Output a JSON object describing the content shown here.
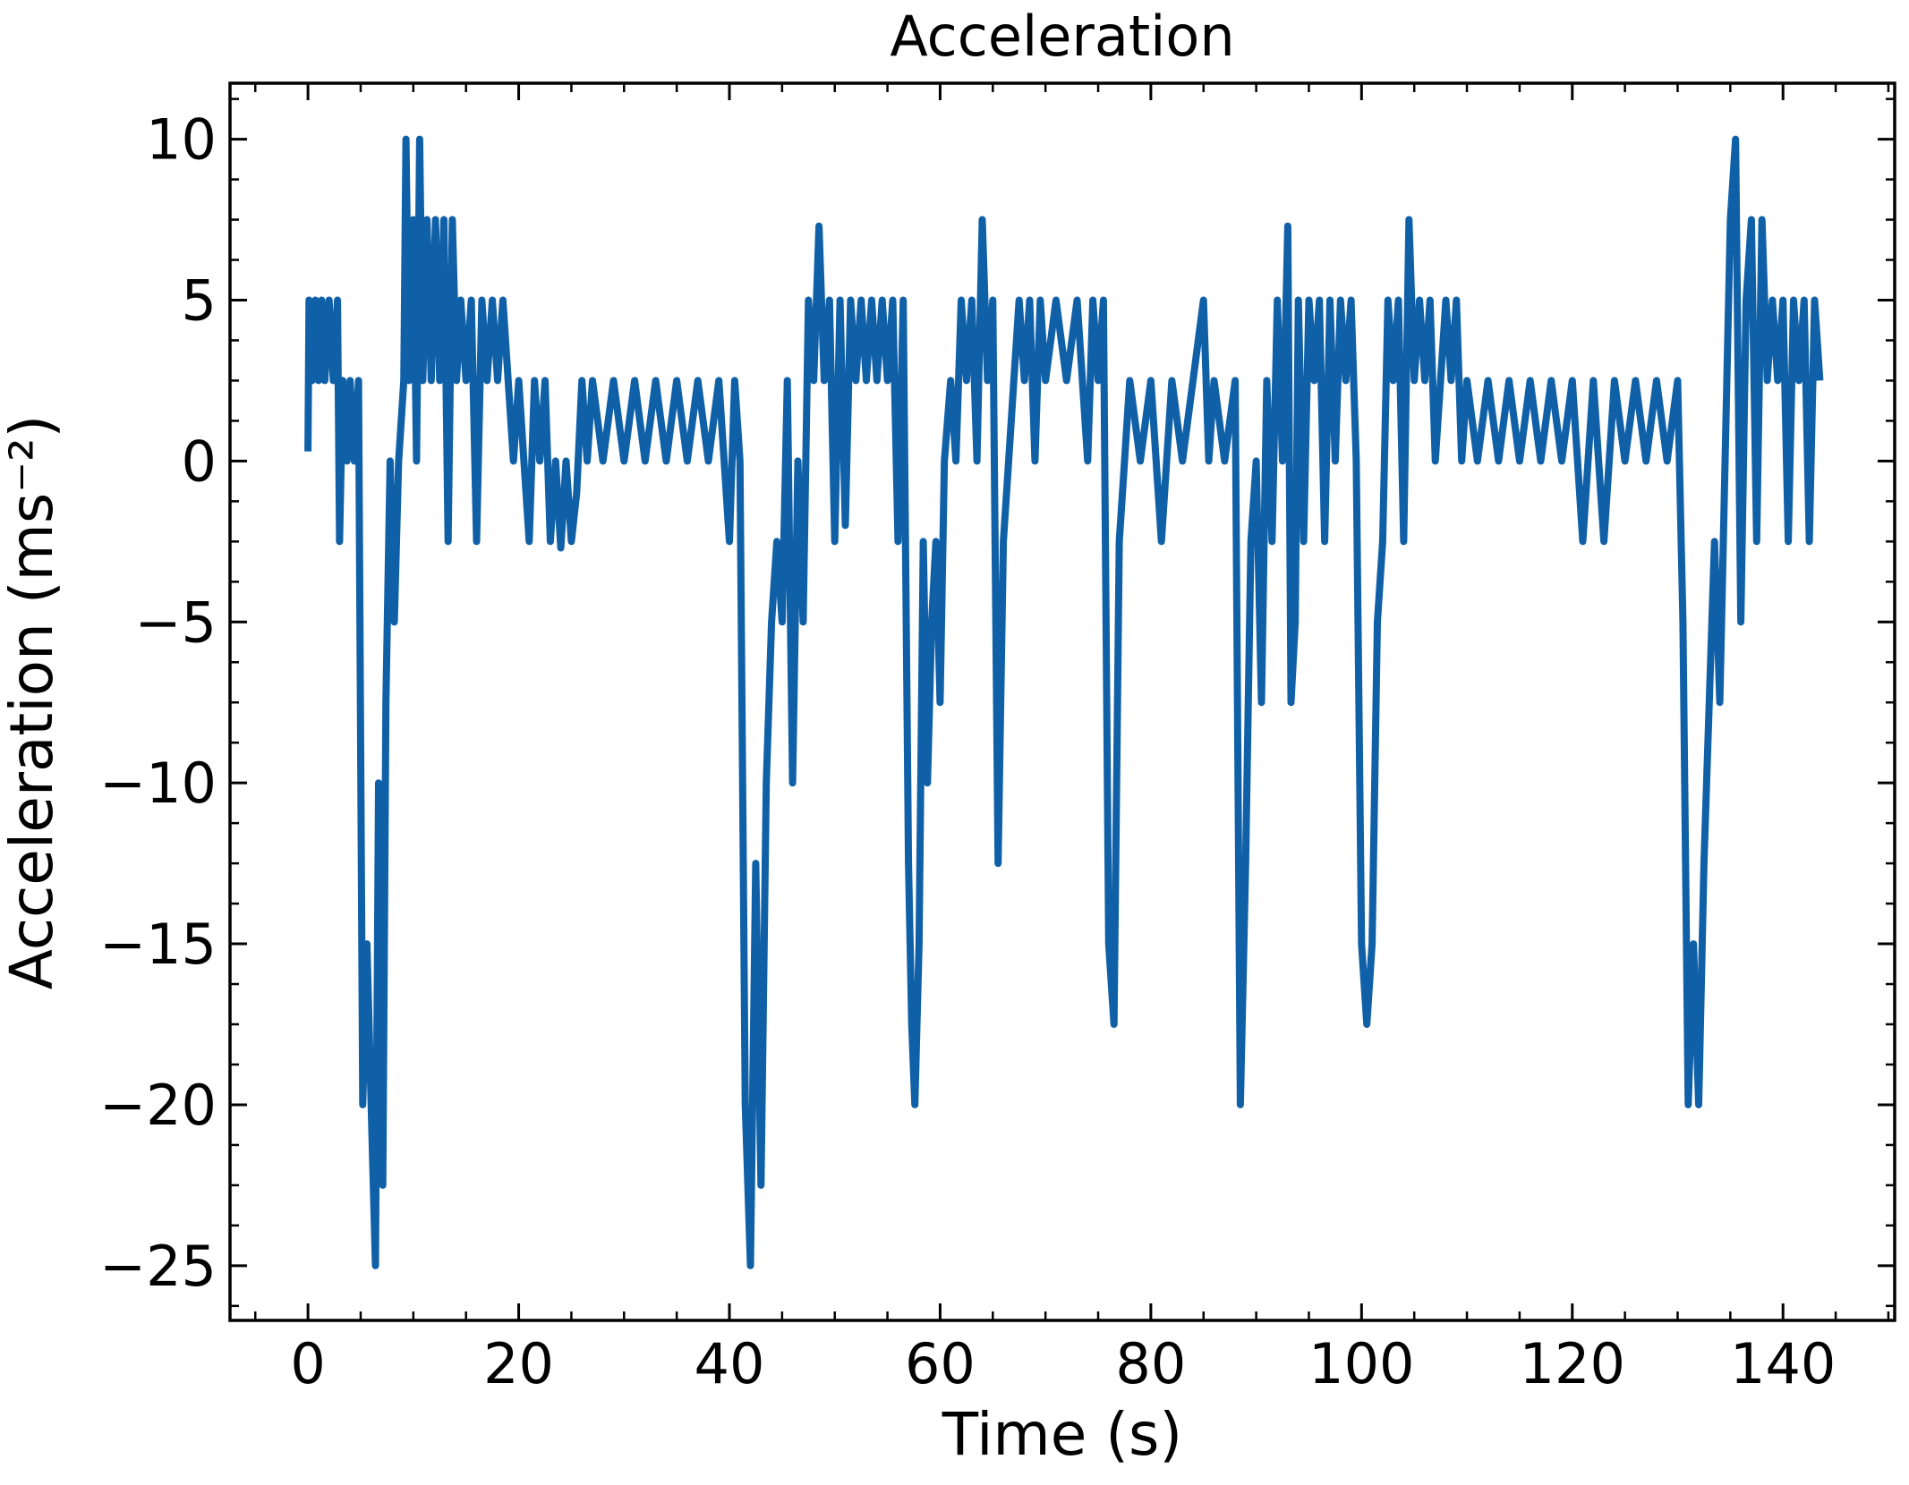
{
  "chart_data": {
    "type": "line",
    "title": "Acceleration",
    "x_label": "Time (s)",
    "y_label": "Acceleration (ms⁻²)",
    "color": "#1060a8",
    "x": [
      0,
      0.1,
      0.4,
      0.7,
      1,
      1.3,
      1.6,
      2,
      2.4,
      2.8,
      3,
      3.3,
      3.7,
      4,
      4.4,
      4.8,
      5.2,
      5.6,
      6,
      6.4,
      6.7,
      7.1,
      7.4,
      7.8,
      8.2,
      8.6,
      9.1,
      9.3,
      9.6,
      10,
      10.3,
      10.6,
      10.9,
      11.3,
      11.7,
      12.1,
      12.5,
      12.9,
      13.3,
      13.7,
      14.1,
      14.5,
      15,
      15.5,
      16,
      16.5,
      17,
      17.5,
      18,
      18.5,
      19,
      19.5,
      20,
      20.5,
      21,
      21.5,
      22,
      22.5,
      23,
      23.5,
      24,
      24.5,
      25,
      25.5,
      26,
      26.5,
      27,
      28,
      29,
      30,
      31,
      32,
      33,
      34,
      35,
      36,
      37,
      38,
      39,
      40,
      40.5,
      41,
      41.5,
      42,
      42.5,
      43,
      43.5,
      44,
      44.5,
      45,
      45.5,
      46,
      46.5,
      47,
      47.5,
      48,
      48.5,
      49,
      49.5,
      50,
      50.5,
      51,
      51.5,
      52,
      52.5,
      53,
      53.5,
      54,
      54.5,
      55,
      55.5,
      56,
      56.5,
      57,
      57.3,
      57.6,
      58,
      58.4,
      58.8,
      59.2,
      59.6,
      60,
      60.4,
      61,
      61.5,
      62,
      62.5,
      63,
      63.5,
      64,
      64.5,
      65,
      65.5,
      66,
      66.5,
      67,
      67.5,
      68,
      68.5,
      69,
      69.5,
      70,
      71,
      72,
      73,
      74,
      74.5,
      75,
      75.5,
      76,
      76.5,
      77,
      77.5,
      78,
      79,
      80,
      81,
      82,
      83,
      84,
      85,
      85.5,
      86,
      87,
      88,
      88.5,
      89,
      89.5,
      90,
      90.5,
      91,
      91.5,
      92,
      92.5,
      93,
      93.3,
      93.7,
      94,
      94.5,
      95,
      95.5,
      96,
      96.5,
      97,
      97.5,
      98,
      98.5,
      99,
      99.5,
      100,
      100.5,
      101,
      101.5,
      102,
      102.5,
      103,
      103.5,
      104,
      104.5,
      105,
      105.5,
      106,
      106.5,
      107,
      108,
      108.5,
      109,
      109.5,
      110,
      111,
      112,
      113,
      114,
      115,
      116,
      117,
      118,
      119,
      120,
      121,
      122,
      123,
      124,
      125,
      126,
      127,
      128,
      129,
      130,
      130.5,
      131,
      131.5,
      132,
      132.5,
      133,
      133.5,
      134,
      134.5,
      135,
      135.5,
      136,
      136.5,
      137,
      137.5,
      138,
      138.5,
      139,
      139.5,
      140,
      140.5,
      141,
      141.5,
      142,
      142.5,
      143,
      143.5
    ],
    "values": [
      0.3,
      5,
      2.5,
      5,
      2.5,
      5,
      2.5,
      5,
      2.5,
      5,
      -2.5,
      2.5,
      0,
      2.5,
      0,
      2.5,
      -20,
      -15,
      -20,
      -25,
      -10,
      -22.5,
      -7.5,
      0,
      -5,
      0,
      2.5,
      10,
      2.5,
      7.5,
      0,
      10,
      2.5,
      7.5,
      2.5,
      7.5,
      2.5,
      7.5,
      -2.5,
      7.5,
      2.5,
      5,
      2.5,
      5,
      -2.5,
      5,
      2.5,
      5,
      2.5,
      5,
      2.5,
      0,
      2.5,
      0,
      -2.5,
      2.5,
      0,
      2.5,
      -2.5,
      0,
      -2.7,
      0,
      -2.5,
      -1,
      2.5,
      0,
      2.5,
      0,
      2.5,
      0,
      2.5,
      0,
      2.5,
      0,
      2.5,
      0,
      2.5,
      0,
      2.5,
      -2.5,
      2.5,
      0,
      -20,
      -25,
      -12.5,
      -22.5,
      -10,
      -5,
      -2.5,
      -5,
      2.5,
      -10,
      0,
      -5,
      5,
      2.5,
      7.3,
      2.5,
      5,
      -2.5,
      5,
      -2,
      5,
      2.5,
      5,
      2.5,
      5,
      2.5,
      5,
      2.5,
      5,
      -2.5,
      5,
      -12.5,
      -17.5,
      -20,
      -15,
      -2.5,
      -10,
      -5,
      -2.5,
      -7.5,
      0,
      2.5,
      0,
      5,
      2.5,
      5,
      0,
      7.5,
      2.5,
      5,
      -12.5,
      -2.5,
      0,
      2.5,
      5,
      2.5,
      5,
      0,
      5,
      2.5,
      5,
      2.5,
      5,
      0,
      5,
      2.5,
      5,
      -15,
      -17.5,
      -2.5,
      0,
      2.5,
      0,
      2.5,
      -2.5,
      2.5,
      0,
      2.5,
      5,
      0,
      2.5,
      0,
      2.5,
      -20,
      -12.5,
      -2.5,
      0,
      -7.5,
      2.5,
      -2.5,
      5,
      0,
      7.3,
      -7.5,
      -5,
      5,
      -2.5,
      5,
      2.5,
      5,
      -2.5,
      5,
      0,
      5,
      2.5,
      5,
      0,
      -15,
      -17.5,
      -15,
      -5,
      -2.5,
      5,
      2.5,
      5,
      -2.5,
      7.5,
      2.5,
      5,
      2.5,
      5,
      0,
      5,
      2.5,
      5,
      0,
      2.5,
      0,
      2.5,
      0,
      2.5,
      0,
      2.5,
      0,
      2.5,
      0,
      2.5,
      -2.5,
      2.5,
      -2.5,
      2.5,
      0,
      2.5,
      0,
      2.5,
      0,
      2.5,
      -5,
      -20,
      -15,
      -20,
      -12.5,
      -7.5,
      -2.5,
      -7.5,
      0,
      7.5,
      10,
      -5,
      5,
      7.5,
      -2.5,
      7.5,
      2.5,
      5,
      2.5,
      5,
      -2.5,
      5,
      2.5,
      5,
      -2.5,
      5,
      2.5
    ],
    "xlim": [
      -7.4,
      150.6
    ],
    "ylim": [
      -26.7,
      11.74
    ],
    "xticks": [
      0,
      20,
      40,
      60,
      80,
      100,
      120,
      140
    ],
    "yticks": [
      {
        "value": -25,
        "label": "−25"
      },
      {
        "value": -20,
        "label": "−20"
      },
      {
        "value": -15,
        "label": "−15"
      },
      {
        "value": -10,
        "label": "−10"
      },
      {
        "value": -5,
        "label": "−5"
      },
      0,
      5,
      10
    ]
  }
}
